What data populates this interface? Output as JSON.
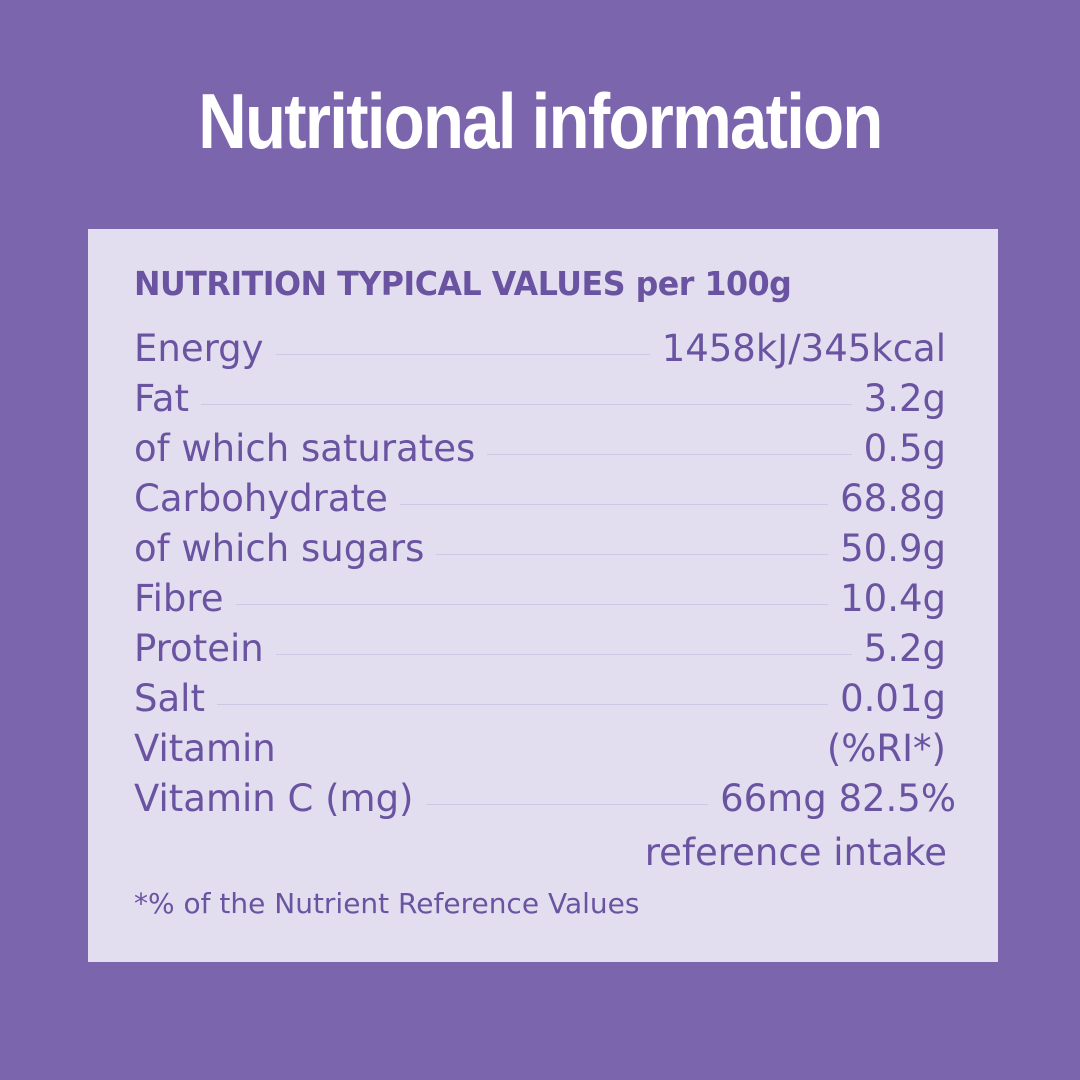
{
  "title": "Nutritional information",
  "panel": {
    "heading": "NUTRITION TYPICAL VALUES per 100g",
    "rows": [
      {
        "label": "Energy",
        "value": "1458kJ/345kcal"
      },
      {
        "label": "Fat",
        "value": "3.2g"
      },
      {
        "label": "of which saturates",
        "value": "0.5g"
      },
      {
        "label": "Carbohydrate",
        "value": "68.8g"
      },
      {
        "label": "of which sugars",
        "value": "50.9g"
      },
      {
        "label": "Fibre",
        "value": "10.4g"
      },
      {
        "label": "Protein",
        "value": "5.2g"
      },
      {
        "label": "Salt",
        "value": "0.01g"
      },
      {
        "label": "Vitamin",
        "value": "(%RI*)"
      },
      {
        "label": "Vitamin C (mg)",
        "value": "66mg 82.5%"
      }
    ],
    "reference_note": "reference intake",
    "footnote": "*% of the Nutrient Reference Values"
  },
  "colors": {
    "background": "#7b66ae",
    "panel": "#e3deef",
    "text": "#6a54a2",
    "title": "#ffffff"
  }
}
